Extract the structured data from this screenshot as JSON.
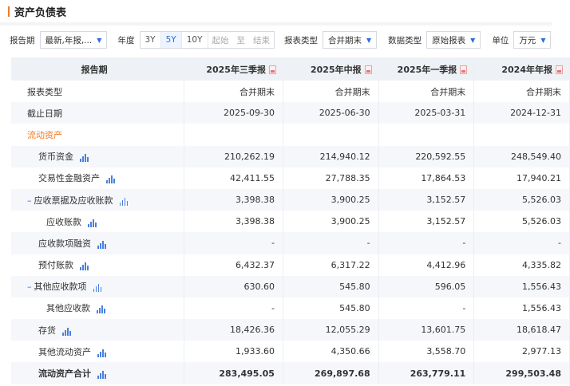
{
  "title": "资产负债表",
  "filters": {
    "period_label": "报告期",
    "period_value": "最新,年报,...",
    "year_label": "年度",
    "year_options": [
      "3Y",
      "5Y",
      "10Y"
    ],
    "year_selected": "5Y",
    "start_placeholder": "起始",
    "to": "至",
    "end_placeholder": "结束",
    "report_type_label": "报表类型",
    "report_type_value": "合并期末",
    "data_type_label": "数据类型",
    "data_type_value": "原始报表",
    "unit_label": "单位",
    "unit_value": "万元"
  },
  "table": {
    "header": "报告期",
    "columns": [
      "2025年三季报",
      "2025年中报",
      "2025年一季报",
      "2024年年报"
    ],
    "rows": [
      {
        "label": "报表类型",
        "values": [
          "合并期末",
          "合并期末",
          "合并期末",
          "合并期末"
        ]
      },
      {
        "label": "截止日期",
        "values": [
          "2025-09-30",
          "2025-06-30",
          "2025-03-31",
          "2024-12-31"
        ]
      },
      {
        "label": "流动资产",
        "values": [
          "",
          "",
          "",
          ""
        ]
      },
      {
        "label": "货币资金",
        "values": [
          "210,262.19",
          "214,940.12",
          "220,592.55",
          "248,549.40"
        ]
      },
      {
        "label": "交易性金融资产",
        "values": [
          "42,411.55",
          "27,788.35",
          "17,864.53",
          "17,940.21"
        ]
      },
      {
        "label": "应收票据及应收账款",
        "values": [
          "3,398.38",
          "3,900.25",
          "3,152.57",
          "5,526.03"
        ]
      },
      {
        "label": "应收账款",
        "values": [
          "3,398.38",
          "3,900.25",
          "3,152.57",
          "5,526.03"
        ]
      },
      {
        "label": "应收款项融资",
        "values": [
          "-",
          "-",
          "-",
          "-"
        ]
      },
      {
        "label": "预付账款",
        "values": [
          "6,432.37",
          "6,317.22",
          "4,412.96",
          "4,335.82"
        ]
      },
      {
        "label": "其他应收款项",
        "values": [
          "630.60",
          "545.80",
          "596.05",
          "1,556.43"
        ]
      },
      {
        "label": "其他应收款",
        "values": [
          "-",
          "545.80",
          "-",
          "1,556.43"
        ]
      },
      {
        "label": "存货",
        "values": [
          "18,426.36",
          "12,055.29",
          "13,601.75",
          "18,618.47"
        ]
      },
      {
        "label": "其他流动资产",
        "values": [
          "1,933.60",
          "4,350.66",
          "3,558.70",
          "2,977.13"
        ]
      },
      {
        "label": "流动资产合计",
        "values": [
          "283,495.05",
          "269,897.68",
          "263,779.11",
          "299,503.48"
        ]
      }
    ]
  },
  "colors": {
    "accent": "#f07a2a",
    "link": "#2a6fdb"
  }
}
